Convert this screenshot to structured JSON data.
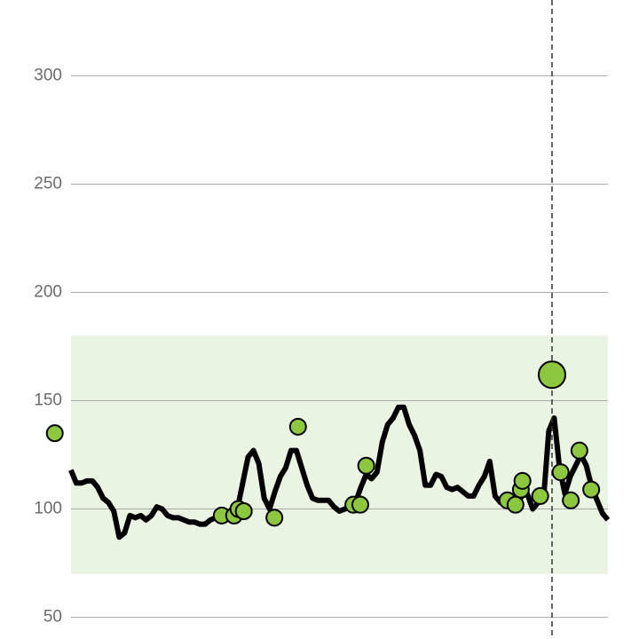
{
  "chart_data": {
    "type": "line",
    "ylim": [
      40,
      335
    ],
    "yticks": [
      50,
      100,
      150,
      200,
      250,
      300
    ],
    "xlim": [
      -13.2,
      105.8
    ],
    "grid": true,
    "target_range": [
      70,
      180
    ],
    "target_color": "#eaf4e2",
    "cursor_x": 89.6,
    "series": [
      {
        "kind": "line",
        "color": "#000000",
        "x": [
          0,
          1,
          2,
          3,
          4,
          5,
          6,
          7,
          8,
          9,
          10,
          11,
          12,
          13,
          14,
          15,
          16,
          17,
          18,
          19,
          20,
          21,
          22,
          23,
          24,
          25,
          26,
          27,
          28,
          29,
          30,
          31,
          32,
          33,
          34,
          35,
          36,
          37,
          38,
          39,
          40,
          41,
          42,
          43,
          44,
          45,
          46,
          47,
          48,
          49,
          50,
          51,
          52,
          53,
          54,
          55,
          56,
          57,
          58,
          59,
          60,
          61,
          62,
          63,
          64,
          65,
          66,
          67,
          68,
          69,
          70,
          71,
          72,
          73,
          74,
          75,
          76,
          77,
          78,
          79,
          80,
          81,
          82,
          83,
          84,
          85,
          86,
          87,
          88,
          89,
          90,
          91,
          92,
          93,
          94,
          95,
          96,
          97,
          98,
          99,
          100
        ],
        "values": [
          118,
          112,
          112,
          113,
          113,
          110,
          105,
          103,
          99,
          87,
          89,
          97,
          96,
          97,
          95,
          97,
          101,
          100,
          97,
          96,
          96,
          95,
          94,
          94,
          93,
          93,
          95,
          96,
          97,
          98,
          99,
          100,
          112,
          124,
          127,
          121,
          105,
          100,
          108,
          115,
          119,
          127,
          127,
          119,
          111,
          105,
          104,
          104,
          104,
          101,
          99,
          100,
          101,
          103,
          110,
          116,
          114,
          117,
          131,
          139,
          142,
          147,
          147,
          139,
          134,
          127,
          111,
          111,
          116,
          115,
          110,
          109,
          110,
          108,
          106,
          106,
          111,
          115,
          122,
          106,
          103,
          103,
          101,
          102,
          106,
          107,
          100,
          103,
          104,
          136,
          142,
          119,
          107,
          115,
          120,
          125,
          120,
          110,
          104,
          98,
          95
        ]
      },
      {
        "kind": "points",
        "color": "#8dc63f",
        "x": [
          -3,
          28.1,
          30.4,
          31.2,
          32.2,
          37.9,
          42.3,
          52.6,
          53.9,
          55,
          81.3,
          82.8,
          83.8,
          84.1,
          87.4,
          89.6,
          91.2,
          93.1,
          94.7,
          96.9
        ],
        "values": [
          135,
          97,
          97,
          100,
          99,
          96,
          138,
          102,
          102,
          120,
          104,
          102,
          109,
          113,
          106,
          162,
          117,
          104,
          127,
          109
        ],
        "sizes": [
          9,
          9,
          9,
          9,
          9,
          9,
          9,
          9,
          9,
          9,
          9,
          9,
          9,
          9,
          9,
          15,
          9,
          9,
          9,
          9
        ]
      }
    ]
  }
}
